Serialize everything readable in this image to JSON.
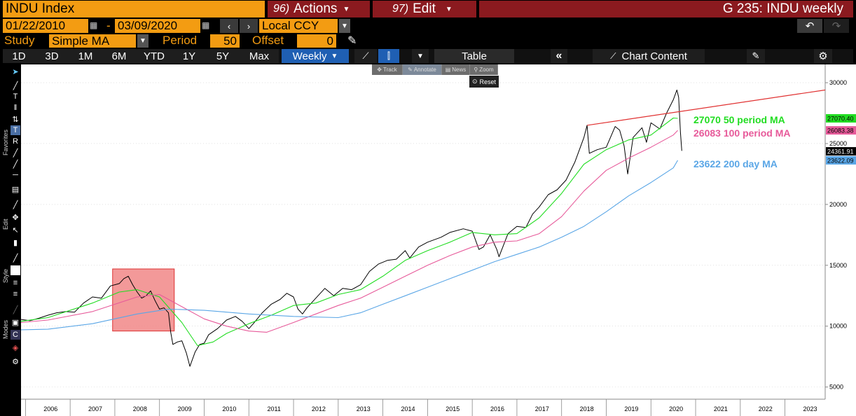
{
  "header": {
    "security": "INDU Index",
    "actions_num": "96)",
    "actions_label": "Actions",
    "edit_num": "97)",
    "edit_label": "Edit",
    "window_title": "G 235: INDU weekly"
  },
  "controls": {
    "start_date": "01/22/2010",
    "date_sep": "-",
    "end_date": "03/09/2020",
    "currency": "Local CCY",
    "study_label": "Study",
    "study_value": "Simple MA",
    "period_label": "Period",
    "period_value": "50",
    "offset_label": "Offset",
    "offset_value": "0"
  },
  "ranges": [
    "1D",
    "3D",
    "1M",
    "6M",
    "YTD",
    "1Y",
    "5Y",
    "Max"
  ],
  "frequency": "Weekly",
  "toolbar": {
    "table_label": "Table",
    "chart_content_label": "Chart Content"
  },
  "mini_toolbar": {
    "track": "Track",
    "annotate": "Annotate",
    "news": "News",
    "zoom": "Zoom",
    "reset": "Reset"
  },
  "sidebar_labels": {
    "favorites": "Favorites",
    "edit": "Edit",
    "style": "Style",
    "modes": "Modes"
  },
  "colors": {
    "price": "#000000",
    "ma50": "#22dd22",
    "ma100": "#e75a9a",
    "ma200": "#5aa6e6",
    "trendline": "#e03030",
    "highlight": "#f08080"
  },
  "chart_data": {
    "type": "line",
    "ylim": [
      4000,
      31500
    ],
    "yticks": [
      5000,
      10000,
      15000,
      20000,
      25000,
      30000
    ],
    "ytick_labels": [
      "5000",
      "10000",
      "15000",
      "20000",
      "25000",
      "30000"
    ],
    "xlim": [
      2005.4,
      2023.4
    ],
    "x_labels": [
      {
        "label": "2006",
        "x": 2006.0
      },
      {
        "label": "2007",
        "x": 2007.0
      },
      {
        "label": "2008",
        "x": 2008.0
      },
      {
        "label": "2009",
        "x": 2009.0
      },
      {
        "label": "2010",
        "x": 2010.0
      },
      {
        "label": "2011",
        "x": 2011.0
      },
      {
        "label": "2012",
        "x": 2012.0
      },
      {
        "label": "2013",
        "x": 2013.0
      },
      {
        "label": "2014",
        "x": 2014.0
      },
      {
        "label": "2015",
        "x": 2015.0
      },
      {
        "label": "2016",
        "x": 2016.0
      },
      {
        "label": "2017",
        "x": 2017.0
      },
      {
        "label": "2018",
        "x": 2018.0
      },
      {
        "label": "2019",
        "x": 2019.0
      },
      {
        "label": "2020",
        "x": 2020.0
      },
      {
        "label": "2021",
        "x": 2021.0
      },
      {
        "label": "2022",
        "x": 2022.0
      },
      {
        "label": "2023",
        "x": 2023.0
      }
    ],
    "series": [
      {
        "name": "INDU",
        "color": "#000000",
        "points": [
          [
            2005.4,
            10550
          ],
          [
            2005.6,
            10450
          ],
          [
            2005.8,
            10650
          ],
          [
            2006.0,
            10900
          ],
          [
            2006.2,
            11100
          ],
          [
            2006.4,
            11200
          ],
          [
            2006.6,
            11150
          ],
          [
            2006.8,
            11900
          ],
          [
            2007.0,
            12400
          ],
          [
            2007.2,
            12300
          ],
          [
            2007.4,
            13300
          ],
          [
            2007.6,
            13500
          ],
          [
            2007.7,
            13900
          ],
          [
            2007.8,
            14100
          ],
          [
            2007.9,
            13400
          ],
          [
            2008.0,
            12800
          ],
          [
            2008.1,
            12300
          ],
          [
            2008.2,
            12500
          ],
          [
            2008.3,
            12900
          ],
          [
            2008.4,
            12100
          ],
          [
            2008.5,
            11400
          ],
          [
            2008.6,
            11500
          ],
          [
            2008.7,
            11100
          ],
          [
            2008.75,
            9500
          ],
          [
            2008.8,
            8500
          ],
          [
            2008.9,
            8700
          ],
          [
            2009.0,
            8800
          ],
          [
            2009.1,
            7800
          ],
          [
            2009.18,
            6700
          ],
          [
            2009.3,
            7900
          ],
          [
            2009.4,
            8500
          ],
          [
            2009.5,
            8600
          ],
          [
            2009.6,
            9300
          ],
          [
            2009.8,
            9800
          ],
          [
            2010.0,
            10500
          ],
          [
            2010.2,
            10800
          ],
          [
            2010.35,
            10400
          ],
          [
            2010.5,
            9800
          ],
          [
            2010.6,
            10200
          ],
          [
            2010.8,
            11100
          ],
          [
            2011.0,
            11800
          ],
          [
            2011.2,
            12200
          ],
          [
            2011.35,
            12700
          ],
          [
            2011.5,
            12400
          ],
          [
            2011.6,
            11400
          ],
          [
            2011.7,
            11000
          ],
          [
            2011.8,
            11500
          ],
          [
            2012.0,
            12300
          ],
          [
            2012.2,
            13100
          ],
          [
            2012.4,
            12500
          ],
          [
            2012.6,
            13100
          ],
          [
            2012.8,
            13000
          ],
          [
            2013.0,
            13400
          ],
          [
            2013.2,
            14500
          ],
          [
            2013.4,
            15100
          ],
          [
            2013.6,
            15400
          ],
          [
            2013.8,
            15500
          ],
          [
            2014.0,
            16200
          ],
          [
            2014.1,
            15600
          ],
          [
            2014.3,
            16500
          ],
          [
            2014.5,
            16900
          ],
          [
            2014.8,
            17300
          ],
          [
            2015.0,
            17700
          ],
          [
            2015.3,
            18000
          ],
          [
            2015.5,
            17800
          ],
          [
            2015.65,
            16300
          ],
          [
            2015.75,
            16500
          ],
          [
            2015.9,
            17500
          ],
          [
            2016.05,
            16300
          ],
          [
            2016.1,
            15700
          ],
          [
            2016.3,
            17600
          ],
          [
            2016.5,
            18200
          ],
          [
            2016.7,
            18100
          ],
          [
            2016.85,
            19200
          ],
          [
            2017.0,
            19800
          ],
          [
            2017.2,
            20800
          ],
          [
            2017.4,
            21200
          ],
          [
            2017.6,
            22000
          ],
          [
            2017.8,
            23500
          ],
          [
            2018.0,
            25500
          ],
          [
            2018.07,
            26500
          ],
          [
            2018.12,
            24200
          ],
          [
            2018.3,
            24500
          ],
          [
            2018.5,
            24700
          ],
          [
            2018.7,
            26400
          ],
          [
            2018.8,
            26100
          ],
          [
            2018.9,
            24800
          ],
          [
            2018.98,
            22500
          ],
          [
            2019.1,
            25500
          ],
          [
            2019.3,
            26300
          ],
          [
            2019.4,
            25100
          ],
          [
            2019.5,
            26700
          ],
          [
            2019.7,
            26200
          ],
          [
            2019.85,
            27500
          ],
          [
            2020.0,
            28600
          ],
          [
            2020.08,
            29400
          ],
          [
            2020.12,
            28800
          ],
          [
            2020.16,
            25900
          ],
          [
            2020.19,
            24400
          ]
        ]
      },
      {
        "name": "50 period MA",
        "color": "#22dd22",
        "points": [
          [
            2005.4,
            10400
          ],
          [
            2006.0,
            10700
          ],
          [
            2007.0,
            11900
          ],
          [
            2007.6,
            12800
          ],
          [
            2008.0,
            13000
          ],
          [
            2008.5,
            12400
          ],
          [
            2009.0,
            10300
          ],
          [
            2009.35,
            8400
          ],
          [
            2009.7,
            8700
          ],
          [
            2010.0,
            9400
          ],
          [
            2010.5,
            10200
          ],
          [
            2011.0,
            10900
          ],
          [
            2011.5,
            11700
          ],
          [
            2012.0,
            11900
          ],
          [
            2012.5,
            12600
          ],
          [
            2013.0,
            13000
          ],
          [
            2013.5,
            14100
          ],
          [
            2014.0,
            15400
          ],
          [
            2014.5,
            16200
          ],
          [
            2015.0,
            16900
          ],
          [
            2015.5,
            17700
          ],
          [
            2016.0,
            17500
          ],
          [
            2016.5,
            17600
          ],
          [
            2017.0,
            18900
          ],
          [
            2017.5,
            20900
          ],
          [
            2018.0,
            23300
          ],
          [
            2018.5,
            24500
          ],
          [
            2019.0,
            25300
          ],
          [
            2019.5,
            25700
          ],
          [
            2020.0,
            27100
          ],
          [
            2020.1,
            27070
          ]
        ]
      },
      {
        "name": "100 period MA",
        "color": "#e75a9a",
        "points": [
          [
            2005.4,
            10300
          ],
          [
            2006.0,
            10500
          ],
          [
            2007.0,
            11200
          ],
          [
            2008.0,
            12400
          ],
          [
            2008.5,
            12600
          ],
          [
            2009.0,
            11600
          ],
          [
            2009.5,
            10600
          ],
          [
            2010.0,
            10000
          ],
          [
            2010.5,
            9600
          ],
          [
            2010.9,
            9500
          ],
          [
            2011.5,
            10300
          ],
          [
            2012.0,
            11000
          ],
          [
            2012.5,
            11700
          ],
          [
            2013.0,
            12300
          ],
          [
            2013.5,
            13200
          ],
          [
            2014.0,
            14100
          ],
          [
            2014.5,
            15000
          ],
          [
            2015.0,
            15800
          ],
          [
            2015.5,
            16500
          ],
          [
            2016.0,
            16900
          ],
          [
            2016.5,
            17000
          ],
          [
            2017.0,
            17600
          ],
          [
            2017.5,
            19000
          ],
          [
            2018.0,
            21100
          ],
          [
            2018.5,
            22800
          ],
          [
            2019.0,
            23800
          ],
          [
            2019.5,
            24700
          ],
          [
            2020.0,
            25700
          ],
          [
            2020.1,
            26083
          ]
        ]
      },
      {
        "name": "200 day MA",
        "color": "#5aa6e6",
        "points": [
          [
            2005.4,
            9700
          ],
          [
            2006.0,
            9750
          ],
          [
            2007.0,
            10200
          ],
          [
            2008.0,
            11000
          ],
          [
            2008.7,
            11400
          ],
          [
            2009.5,
            11300
          ],
          [
            2010.5,
            11000
          ],
          [
            2011.5,
            10800
          ],
          [
            2012.5,
            10700
          ],
          [
            2013.0,
            11100
          ],
          [
            2013.5,
            11800
          ],
          [
            2014.0,
            12500
          ],
          [
            2014.5,
            13200
          ],
          [
            2015.0,
            13900
          ],
          [
            2015.5,
            14600
          ],
          [
            2016.0,
            15300
          ],
          [
            2016.5,
            15900
          ],
          [
            2017.0,
            16500
          ],
          [
            2017.5,
            17300
          ],
          [
            2018.0,
            18200
          ],
          [
            2018.5,
            19400
          ],
          [
            2019.0,
            20700
          ],
          [
            2019.5,
            21800
          ],
          [
            2020.0,
            23000
          ],
          [
            2020.1,
            23622
          ]
        ]
      }
    ],
    "trendline": {
      "color": "#e03030",
      "points": [
        [
          2018.07,
          26500
        ],
        [
          2023.4,
          29400
        ]
      ]
    },
    "highlight_box": {
      "x": [
        2007.45,
        2008.83
      ],
      "y": [
        9600,
        14700
      ],
      "color": "#f08080"
    },
    "axis_tags": [
      {
        "value": 27070.4,
        "label": "27070.40",
        "bg": "#22dd22",
        "fg": "#000000"
      },
      {
        "value": 26083.38,
        "label": "26083.38",
        "bg": "#e75a9a",
        "fg": "#000000"
      },
      {
        "value": 24361.91,
        "label": "24361.91",
        "bg": "#000000",
        "fg": "#ffffff"
      },
      {
        "value": 23622.09,
        "label": "23622.09",
        "bg": "#5aa6e6",
        "fg": "#000000"
      }
    ],
    "annotations": [
      {
        "text": "27070  50 period MA",
        "color": "#22dd22"
      },
      {
        "text": "26083 100 period MA",
        "color": "#e75a9a"
      },
      {
        "text": "23622 200 day MA",
        "color": "#5aa6e6"
      }
    ]
  }
}
